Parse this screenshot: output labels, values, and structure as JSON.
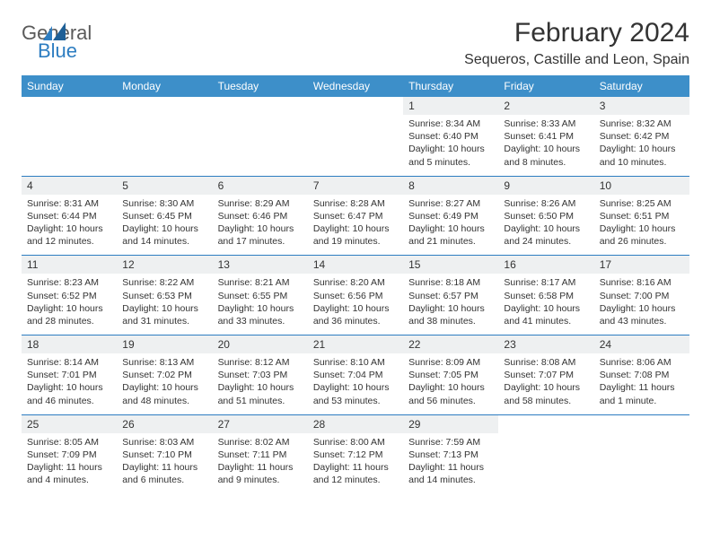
{
  "logo": {
    "top": "General",
    "bottom": "Blue"
  },
  "title": "February 2024",
  "location": "Sequeros, Castille and Leon, Spain",
  "colors": {
    "header_bg": "#3d8fc9",
    "header_text": "#ffffff",
    "daynum_bg": "#eef0f1",
    "rule": "#2d7dc1",
    "text": "#333333",
    "logo_gray": "#5a5a5a",
    "logo_blue": "#2d7dc1"
  },
  "dow": [
    "Sunday",
    "Monday",
    "Tuesday",
    "Wednesday",
    "Thursday",
    "Friday",
    "Saturday"
  ],
  "weeks": [
    [
      null,
      null,
      null,
      null,
      {
        "n": "1",
        "sr": "8:34 AM",
        "ss": "6:40 PM",
        "dl": "10 hours and 5 minutes."
      },
      {
        "n": "2",
        "sr": "8:33 AM",
        "ss": "6:41 PM",
        "dl": "10 hours and 8 minutes."
      },
      {
        "n": "3",
        "sr": "8:32 AM",
        "ss": "6:42 PM",
        "dl": "10 hours and 10 minutes."
      }
    ],
    [
      {
        "n": "4",
        "sr": "8:31 AM",
        "ss": "6:44 PM",
        "dl": "10 hours and 12 minutes."
      },
      {
        "n": "5",
        "sr": "8:30 AM",
        "ss": "6:45 PM",
        "dl": "10 hours and 14 minutes."
      },
      {
        "n": "6",
        "sr": "8:29 AM",
        "ss": "6:46 PM",
        "dl": "10 hours and 17 minutes."
      },
      {
        "n": "7",
        "sr": "8:28 AM",
        "ss": "6:47 PM",
        "dl": "10 hours and 19 minutes."
      },
      {
        "n": "8",
        "sr": "8:27 AM",
        "ss": "6:49 PM",
        "dl": "10 hours and 21 minutes."
      },
      {
        "n": "9",
        "sr": "8:26 AM",
        "ss": "6:50 PM",
        "dl": "10 hours and 24 minutes."
      },
      {
        "n": "10",
        "sr": "8:25 AM",
        "ss": "6:51 PM",
        "dl": "10 hours and 26 minutes."
      }
    ],
    [
      {
        "n": "11",
        "sr": "8:23 AM",
        "ss": "6:52 PM",
        "dl": "10 hours and 28 minutes."
      },
      {
        "n": "12",
        "sr": "8:22 AM",
        "ss": "6:53 PM",
        "dl": "10 hours and 31 minutes."
      },
      {
        "n": "13",
        "sr": "8:21 AM",
        "ss": "6:55 PM",
        "dl": "10 hours and 33 minutes."
      },
      {
        "n": "14",
        "sr": "8:20 AM",
        "ss": "6:56 PM",
        "dl": "10 hours and 36 minutes."
      },
      {
        "n": "15",
        "sr": "8:18 AM",
        "ss": "6:57 PM",
        "dl": "10 hours and 38 minutes."
      },
      {
        "n": "16",
        "sr": "8:17 AM",
        "ss": "6:58 PM",
        "dl": "10 hours and 41 minutes."
      },
      {
        "n": "17",
        "sr": "8:16 AM",
        "ss": "7:00 PM",
        "dl": "10 hours and 43 minutes."
      }
    ],
    [
      {
        "n": "18",
        "sr": "8:14 AM",
        "ss": "7:01 PM",
        "dl": "10 hours and 46 minutes."
      },
      {
        "n": "19",
        "sr": "8:13 AM",
        "ss": "7:02 PM",
        "dl": "10 hours and 48 minutes."
      },
      {
        "n": "20",
        "sr": "8:12 AM",
        "ss": "7:03 PM",
        "dl": "10 hours and 51 minutes."
      },
      {
        "n": "21",
        "sr": "8:10 AM",
        "ss": "7:04 PM",
        "dl": "10 hours and 53 minutes."
      },
      {
        "n": "22",
        "sr": "8:09 AM",
        "ss": "7:05 PM",
        "dl": "10 hours and 56 minutes."
      },
      {
        "n": "23",
        "sr": "8:08 AM",
        "ss": "7:07 PM",
        "dl": "10 hours and 58 minutes."
      },
      {
        "n": "24",
        "sr": "8:06 AM",
        "ss": "7:08 PM",
        "dl": "11 hours and 1 minute."
      }
    ],
    [
      {
        "n": "25",
        "sr": "8:05 AM",
        "ss": "7:09 PM",
        "dl": "11 hours and 4 minutes."
      },
      {
        "n": "26",
        "sr": "8:03 AM",
        "ss": "7:10 PM",
        "dl": "11 hours and 6 minutes."
      },
      {
        "n": "27",
        "sr": "8:02 AM",
        "ss": "7:11 PM",
        "dl": "11 hours and 9 minutes."
      },
      {
        "n": "28",
        "sr": "8:00 AM",
        "ss": "7:12 PM",
        "dl": "11 hours and 12 minutes."
      },
      {
        "n": "29",
        "sr": "7:59 AM",
        "ss": "7:13 PM",
        "dl": "11 hours and 14 minutes."
      },
      null,
      null
    ]
  ],
  "labels": {
    "sunrise": "Sunrise: ",
    "sunset": "Sunset: ",
    "daylight": "Daylight: "
  }
}
